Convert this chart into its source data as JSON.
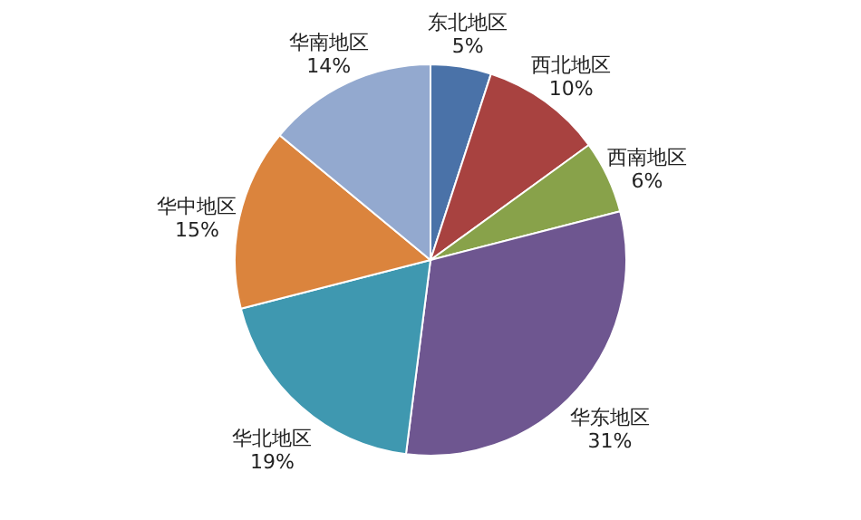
{
  "chart_data": {
    "type": "pie",
    "categories": [
      "东北地区",
      "西北地区",
      "西南地区",
      "华东地区",
      "华北地区",
      "华中地区",
      "华南地区"
    ],
    "values": [
      5,
      10,
      6,
      31,
      19,
      15,
      14
    ],
    "value_labels": [
      "5%",
      "10%",
      "6%",
      "31%",
      "19%",
      "15%",
      "14%"
    ],
    "colors": [
      "#4a72a8",
      "#a84240",
      "#88a24a",
      "#6e5690",
      "#3f98b0",
      "#db843d",
      "#93a9cf"
    ],
    "legend": false
  }
}
